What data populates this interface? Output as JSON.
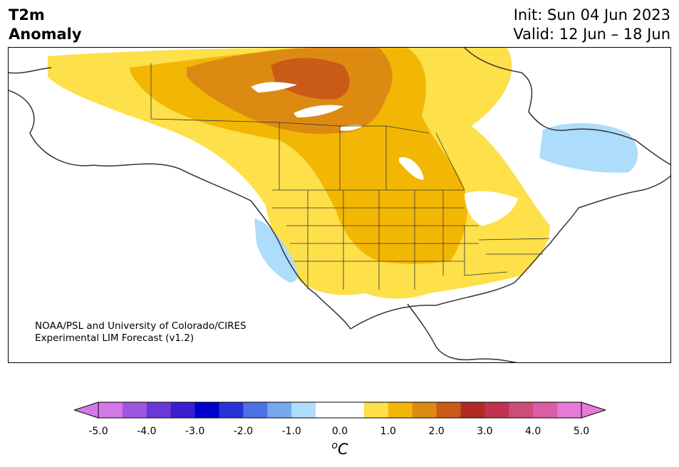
{
  "header": {
    "title_line1": "T2m",
    "title_line2": "Anomaly",
    "init": "Init: Sun 04 Jun 2023",
    "valid": "Valid: 12 Jun – 18 Jun"
  },
  "credit": {
    "line1": "NOAA/PSL and University of Colorado/CIRES",
    "line2": "Experimental LIM Forecast (v1.2)"
  },
  "colorbar": {
    "unit_sup": "o",
    "unit_main": "C",
    "ticks": [
      "-5.0",
      "-4.0",
      "-3.0",
      "-2.0",
      "-1.0",
      "0.0",
      "1.0",
      "2.0",
      "3.0",
      "4.0",
      "5.0"
    ],
    "colors": [
      "#d378e6",
      "#9e57e0",
      "#6a38d9",
      "#3a1fd0",
      "#0000cc",
      "#2633d9",
      "#4d72e6",
      "#75aaf0",
      "#aedcfb",
      "#ffffff",
      "#ffffff",
      "#fde04a",
      "#f2b705",
      "#dd8a12",
      "#c95a17",
      "#b02a24",
      "#bf3350",
      "#cc4c7a",
      "#d95ea6",
      "#e67ad6"
    ],
    "extend_low": "#d378e6",
    "extend_high": "#e67ad6"
  },
  "map_colors": {
    "level1": "#fde04a",
    "level2": "#f2b705",
    "level3": "#dd8a12",
    "level4": "#c95a17",
    "cool": "#aedcfb"
  }
}
